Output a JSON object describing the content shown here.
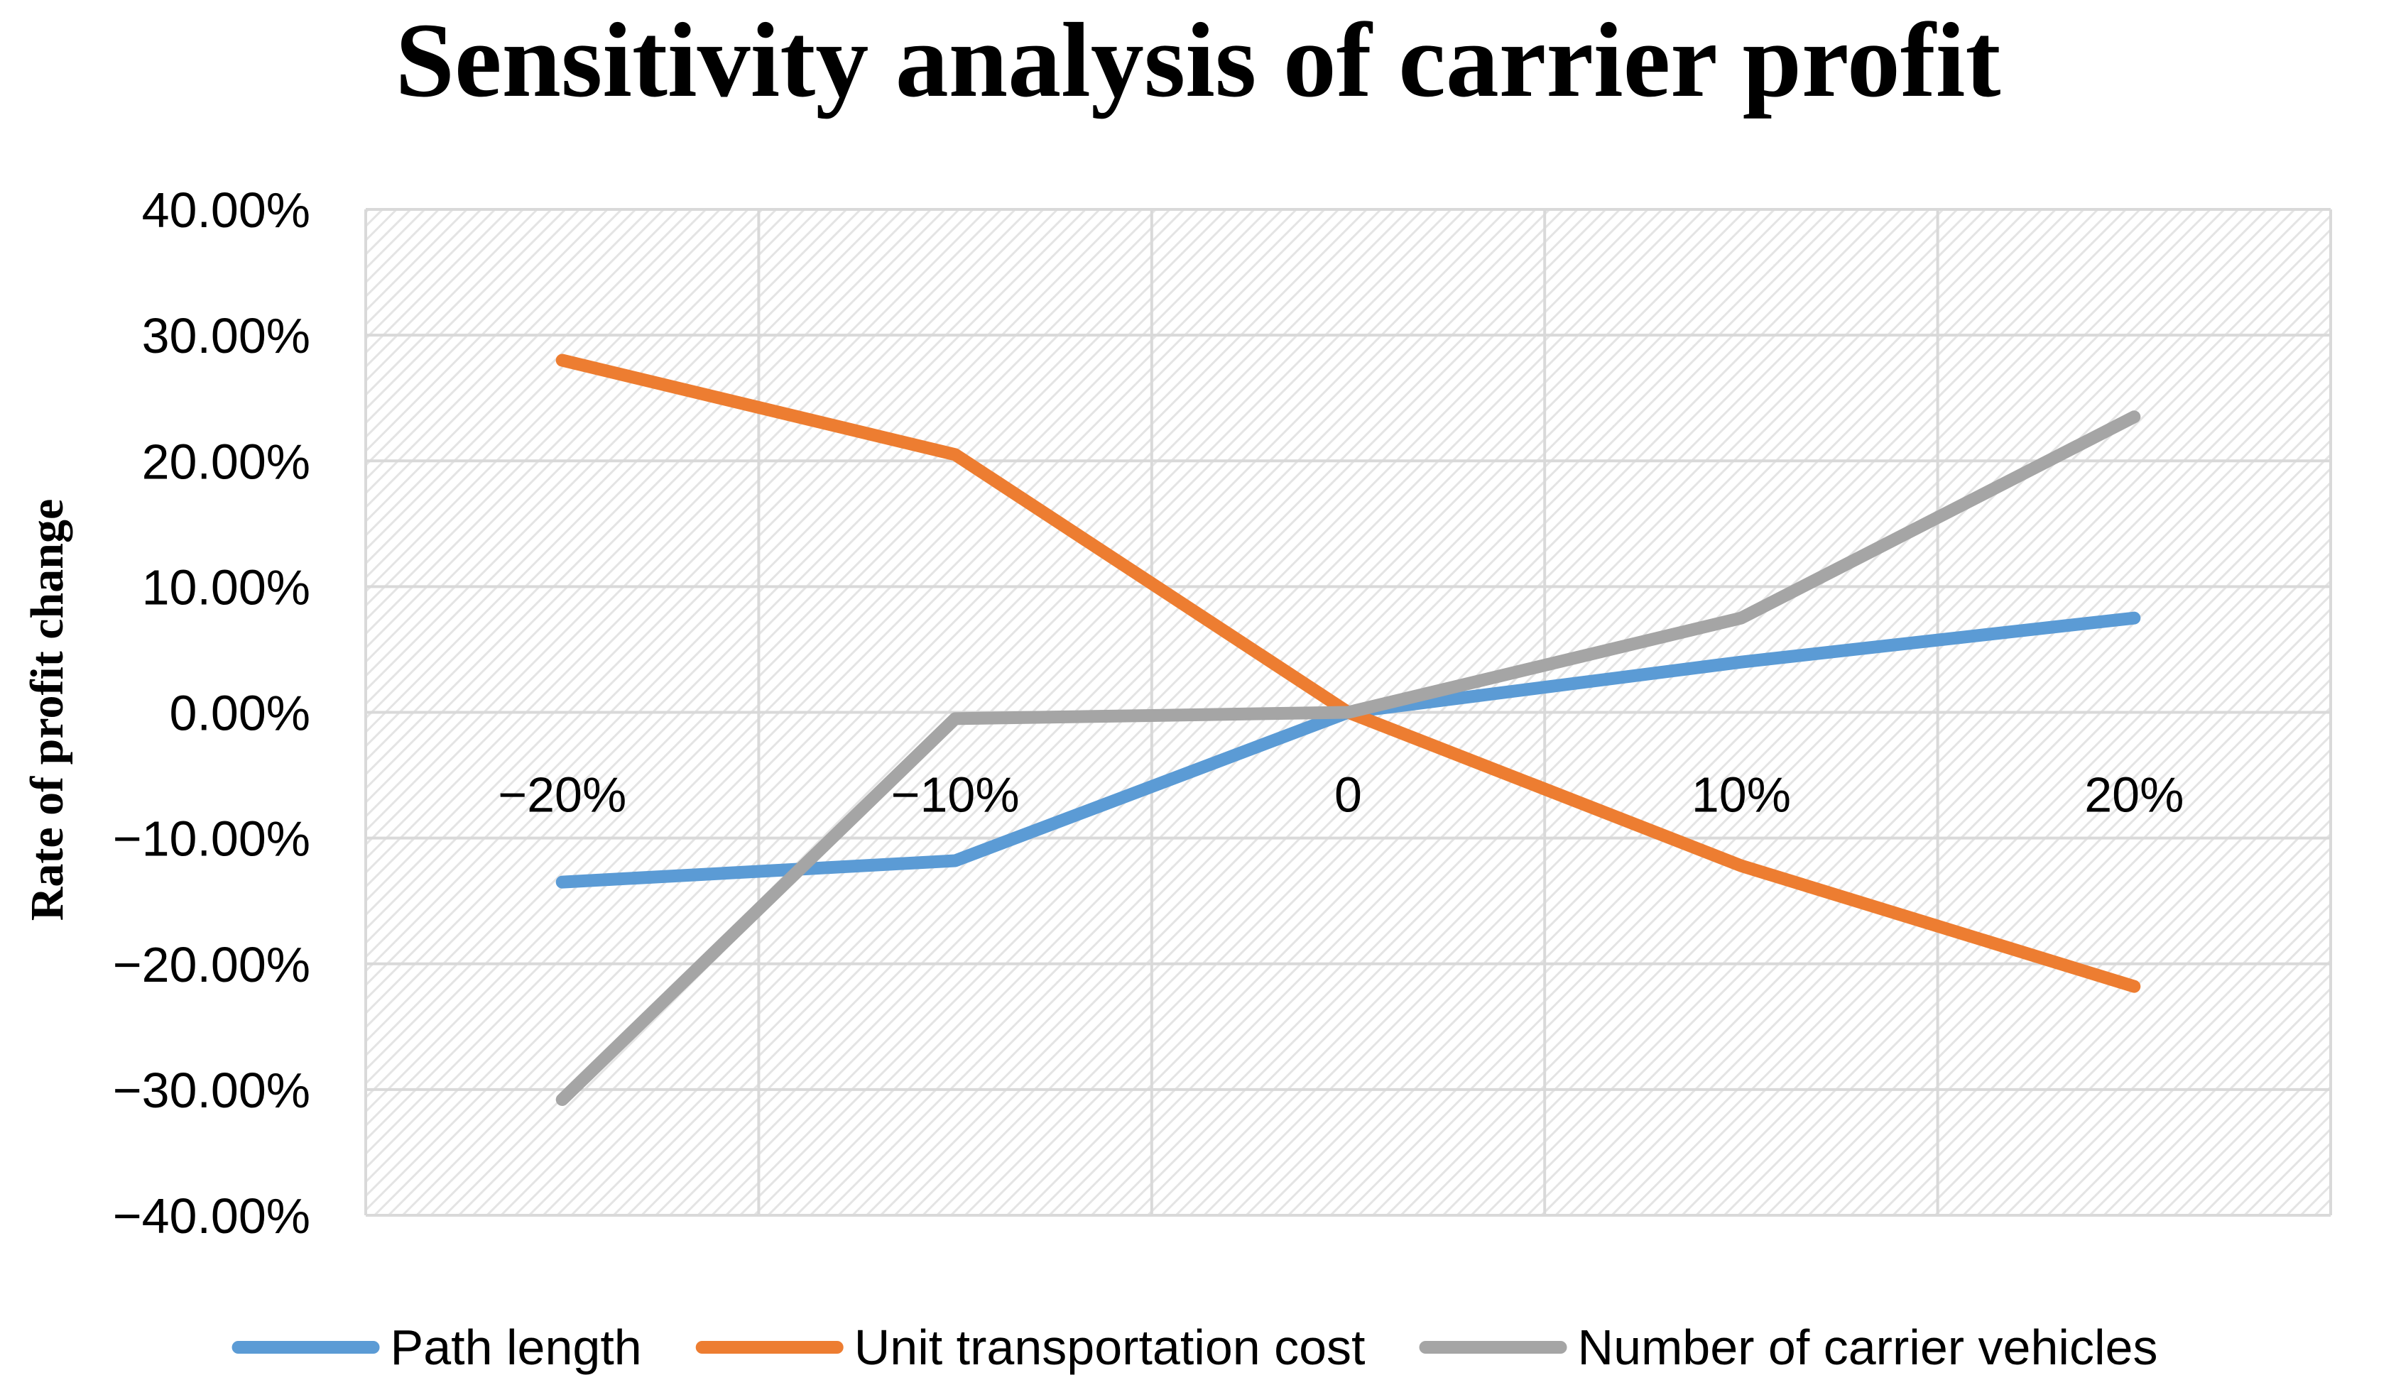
{
  "chart_data": {
    "type": "line",
    "title": "Sensitivity analysis of carrier profit",
    "xlabel": "",
    "ylabel": "Rate of profit change",
    "categories": [
      "−20%",
      "−10%",
      "0",
      "10%",
      "20%"
    ],
    "y_ticks": [
      "40.00%",
      "30.00%",
      "20.00%",
      "10.00%",
      "0.00%",
      "−10.00%",
      "−20.00%",
      "−30.00%",
      "−40.00%"
    ],
    "ylim": [
      -40,
      40
    ],
    "y_step": 10,
    "grid": true,
    "legend_position": "bottom",
    "series": [
      {
        "name": "Path length",
        "color": "#5b9bd5",
        "values": [
          -13.5,
          -11.8,
          0,
          4.0,
          7.5
        ]
      },
      {
        "name": "Unit transportation cost",
        "color": "#ed7d31",
        "values": [
          28.0,
          20.5,
          0,
          -12.2,
          -21.8
        ]
      },
      {
        "name": "Number of carrier vehicles",
        "color": "#a5a5a5",
        "values": [
          -30.8,
          -0.5,
          0,
          7.5,
          23.5
        ]
      }
    ]
  }
}
